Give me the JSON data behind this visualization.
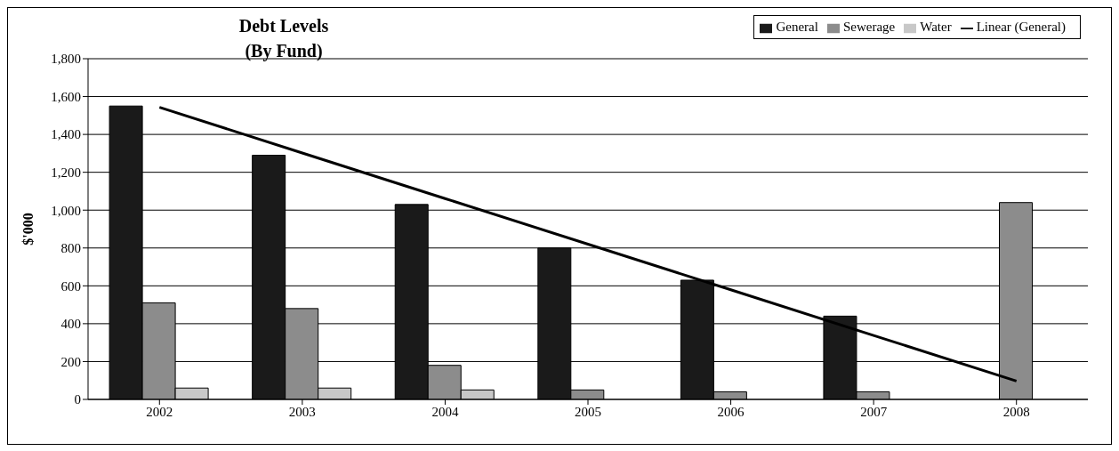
{
  "chart_data": {
    "type": "bar",
    "title": "Debt Levels",
    "subtitle": "(By Fund)",
    "ylabel": "$'000",
    "categories": [
      "2002",
      "2003",
      "2004",
      "2005",
      "2006",
      "2007",
      "2008"
    ],
    "series": [
      {
        "name": "General",
        "color": "#1a1a1a",
        "values": [
          1550,
          1290,
          1030,
          800,
          630,
          440,
          0
        ]
      },
      {
        "name": "Sewerage",
        "color": "#8c8c8c",
        "values": [
          510,
          480,
          180,
          50,
          40,
          40,
          1040
        ]
      },
      {
        "name": "Water",
        "color": "#c8c8c8",
        "values": [
          60,
          60,
          50,
          0,
          0,
          0,
          0
        ]
      },
      {
        "name": "Linear (General)",
        "type": "line",
        "color": "#000000",
        "values": [
          1543,
          1302,
          1061,
          820,
          579,
          338,
          97
        ]
      }
    ],
    "ylim": [
      0,
      1800
    ],
    "yticks": [
      0,
      200,
      400,
      600,
      800,
      {
        "value": 1000,
        "label": "1,000"
      },
      {
        "value": 1200,
        "label": "1,200"
      },
      {
        "value": 1400,
        "label": "1,400"
      },
      {
        "value": 1600,
        "label": "1,600"
      },
      {
        "value": 1800,
        "label": "1,800"
      }
    ],
    "grid": "y",
    "legend": "top right"
  }
}
